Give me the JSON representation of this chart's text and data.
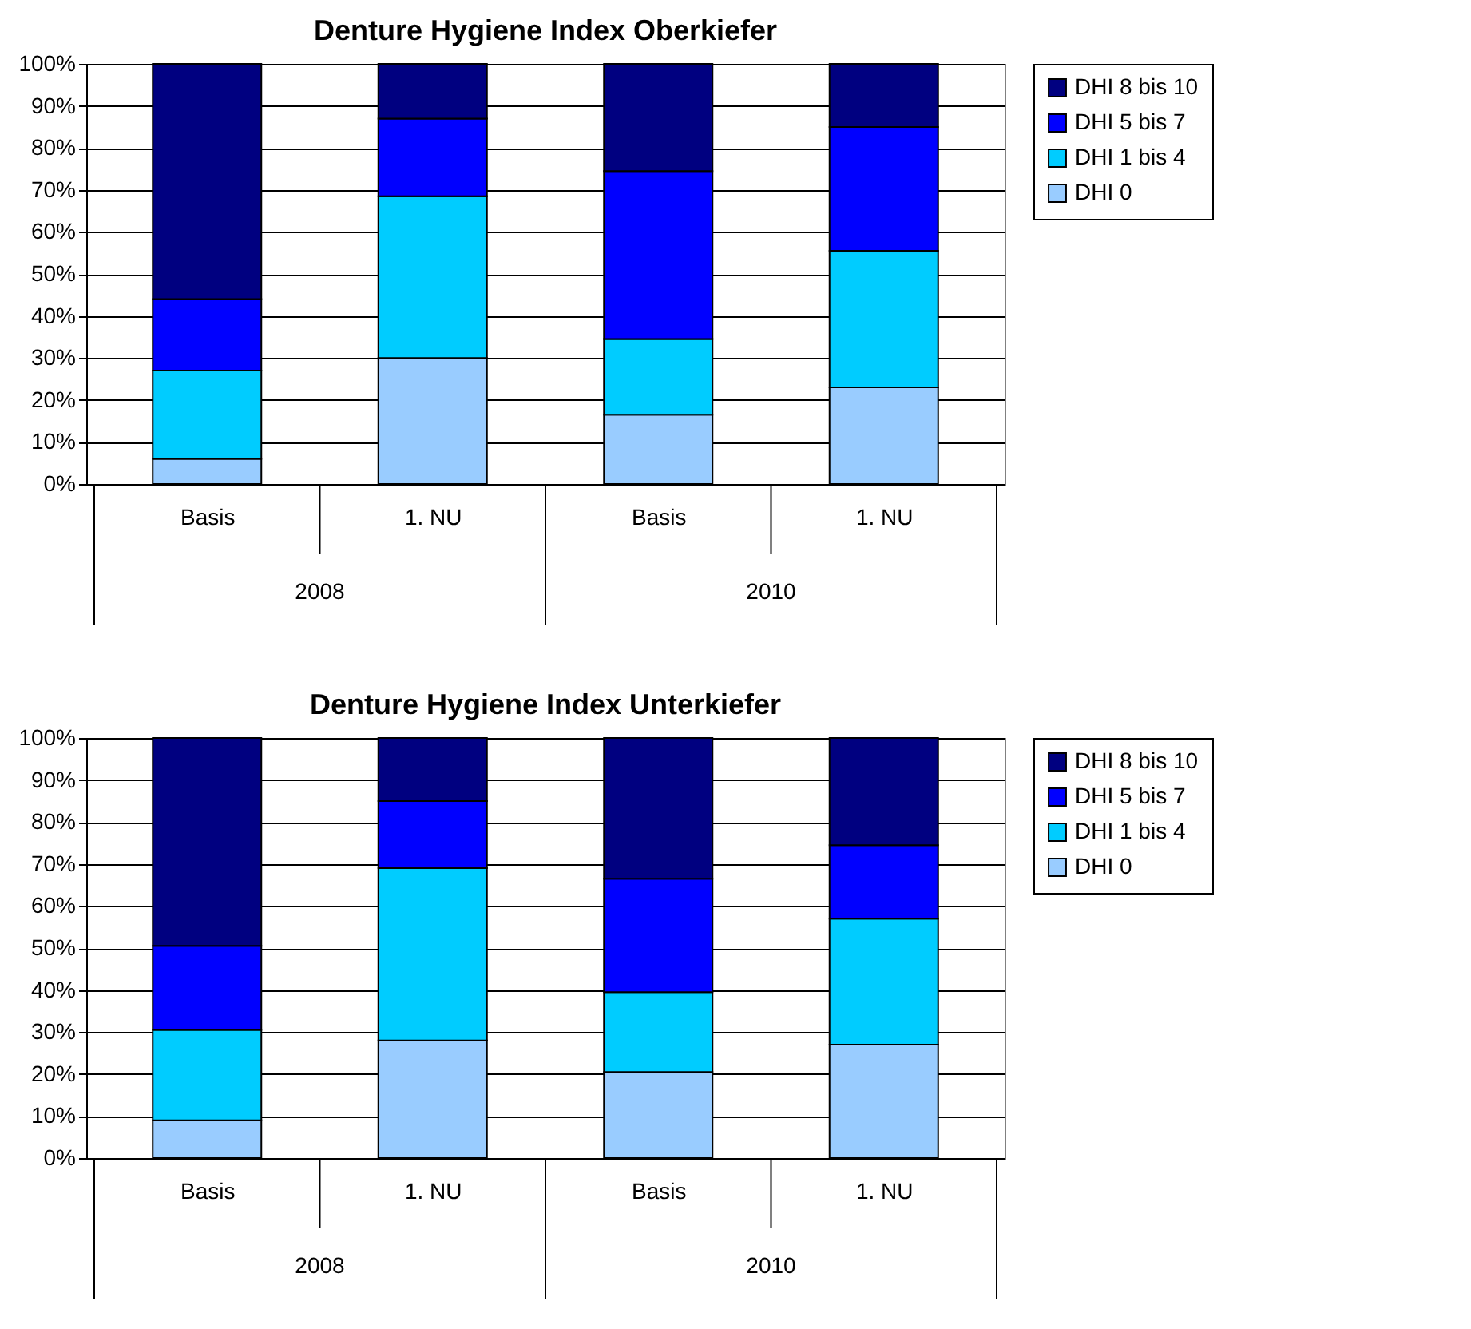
{
  "chart_data": [
    {
      "type": "bar",
      "title": "Denture Hygiene Index Oberkiefer",
      "stacked": true,
      "categories": [
        "Basis",
        "1. NU",
        "Basis",
        "1. NU"
      ],
      "annotations": [
        "2008",
        "2010"
      ],
      "series": [
        {
          "name": "DHI 0",
          "color": "#99ccff",
          "values": [
            6,
            30,
            16.5,
            23
          ]
        },
        {
          "name": "DHI 1 bis 4",
          "color": "#00ccff",
          "values": [
            21,
            38.5,
            18,
            32.5
          ]
        },
        {
          "name": "DHI 5 bis 7",
          "color": "#0000ff",
          "values": [
            17,
            18.5,
            40,
            29.5
          ]
        },
        {
          "name": "DHI 8 bis 10",
          "color": "#000080",
          "values": [
            56,
            13,
            25.5,
            15
          ]
        }
      ],
      "ylim": [
        0,
        100
      ],
      "yticks": [
        {
          "value": 0,
          "label": "0%"
        },
        {
          "value": 10,
          "label": "10%"
        },
        {
          "value": 20,
          "label": "20%"
        },
        {
          "value": 30,
          "label": "30%"
        },
        {
          "value": 40,
          "label": "40%"
        },
        {
          "value": 50,
          "label": "50%"
        },
        {
          "value": 60,
          "label": "60%"
        },
        {
          "value": 70,
          "label": "70%"
        },
        {
          "value": 80,
          "label": "80%"
        },
        {
          "value": 90,
          "label": "90%"
        },
        {
          "value": 100,
          "label": "100%"
        }
      ],
      "grid": "y",
      "legend": "right"
    },
    {
      "type": "bar",
      "title": "Denture Hygiene Index Unterkiefer",
      "stacked": true,
      "categories": [
        "Basis",
        "1. NU",
        "Basis",
        "1. NU"
      ],
      "annotations": [
        "2008",
        "2010"
      ],
      "series": [
        {
          "name": "DHI 0",
          "color": "#99ccff",
          "values": [
            9,
            28,
            20.5,
            27
          ]
        },
        {
          "name": "DHI 1 bis 4",
          "color": "#00ccff",
          "values": [
            21.5,
            41,
            19,
            30
          ]
        },
        {
          "name": "DHI 5 bis 7",
          "color": "#0000ff",
          "values": [
            20,
            16,
            27,
            17.5
          ]
        },
        {
          "name": "DHI 8 bis 10",
          "color": "#000080",
          "values": [
            49.5,
            15,
            33.5,
            25.5
          ]
        }
      ],
      "ylim": [
        0,
        100
      ],
      "yticks": [
        {
          "value": 0,
          "label": "0%"
        },
        {
          "value": 10,
          "label": "10%"
        },
        {
          "value": 20,
          "label": "20%"
        },
        {
          "value": 30,
          "label": "30%"
        },
        {
          "value": 40,
          "label": "40%"
        },
        {
          "value": 50,
          "label": "50%"
        },
        {
          "value": 60,
          "label": "60%"
        },
        {
          "value": 70,
          "label": "70%"
        },
        {
          "value": 80,
          "label": "80%"
        },
        {
          "value": 90,
          "label": "90%"
        },
        {
          "value": 100,
          "label": "100%"
        }
      ],
      "grid": "y",
      "legend": "right"
    }
  ]
}
